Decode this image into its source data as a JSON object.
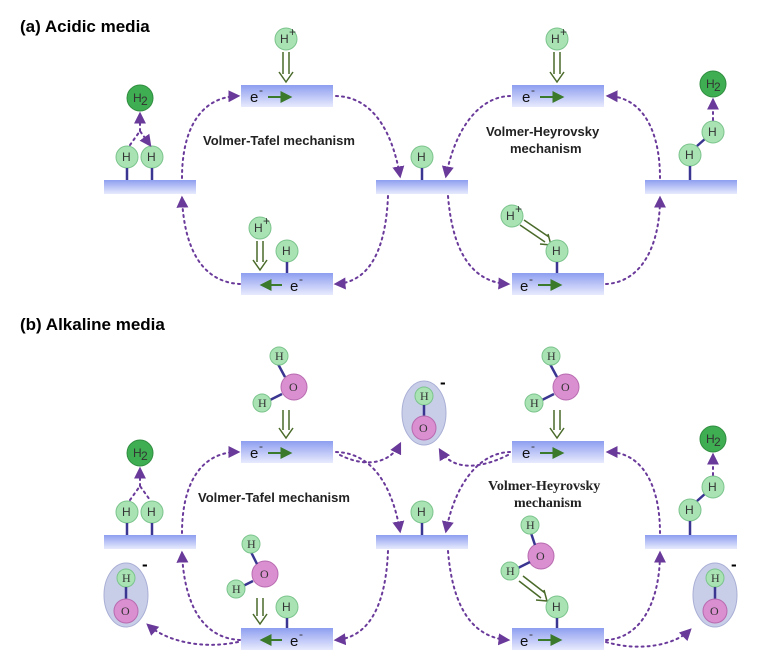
{
  "panels": {
    "a_title": "(a) Acidic media",
    "b_title": "(b) Alkaline  media"
  },
  "labels": {
    "volmer_tafel": "Volmer-Tafel mechanism",
    "volmer_heyrovsky_1": "Volmer-Heyrovsky",
    "volmer_heyrovsky_2": "mechanism",
    "electron": "e",
    "electron_sup": "-",
    "proton": "H",
    "proton_sup": "+",
    "hydrogen": "H",
    "h2": "H",
    "h2_sub": "2",
    "oxygen": "O",
    "hydroxide_charge": "-"
  },
  "colors": {
    "electrode_top": "#9aa8f2",
    "electrode_bottom": "#e4e8fd",
    "hydrogen_atom": "#a9e3b4",
    "h2_molecule": "#3fae52",
    "oxygen_atom": "#d98fd0",
    "flow_arrow": "#6a3a9a",
    "electron_arrow": "#3a7a2a"
  }
}
